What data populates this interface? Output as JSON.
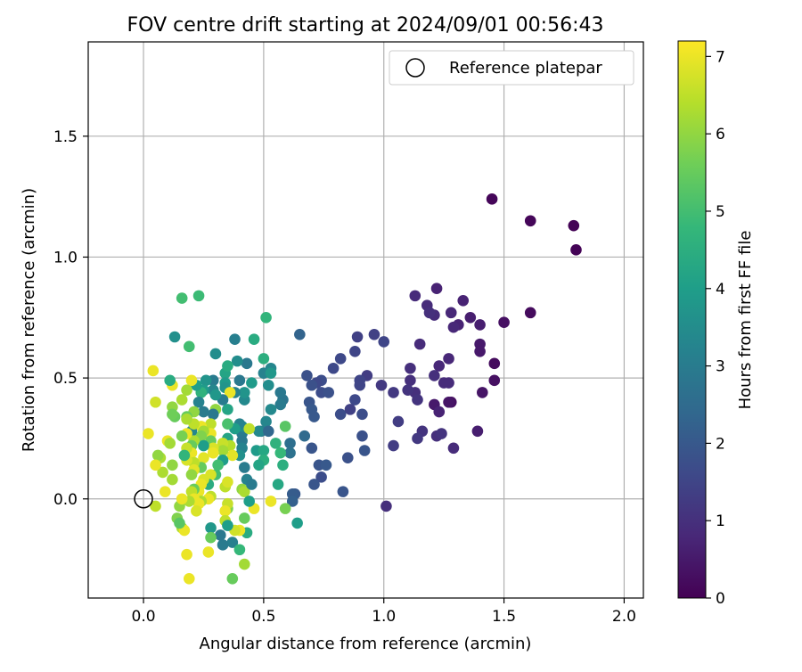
{
  "chart_data": {
    "type": "scatter",
    "title": "FOV centre drift starting at 2024/09/01 00:56:43",
    "xlabel": "Angular distance from reference (arcmin)",
    "ylabel": "Rotation from reference (arcmin)",
    "xlim": [
      -0.23,
      2.08
    ],
    "ylim": [
      -0.41,
      1.89
    ],
    "xticks": [
      0.0,
      0.5,
      1.0,
      1.5,
      2.0
    ],
    "xtick_labels": [
      "0.0",
      "0.5",
      "1.0",
      "1.5",
      "2.0"
    ],
    "yticks": [
      0.0,
      0.5,
      1.0,
      1.5
    ],
    "ytick_labels": [
      "0.0",
      "0.5",
      "1.0",
      "1.5"
    ],
    "grid": true,
    "legend": {
      "position": "top-right",
      "entries": [
        "Reference platepar"
      ]
    },
    "reference_point": {
      "x": 0.0,
      "y": 0.0,
      "label": "Reference platepar",
      "marker": "open-circle"
    },
    "colorbar": {
      "label": "Hours from first FF file",
      "range": [
        0,
        7.2
      ],
      "ticks": [
        0,
        1,
        2,
        3,
        4,
        5,
        6,
        7
      ],
      "tick_labels": [
        "0",
        "1",
        "2",
        "3",
        "4",
        "5",
        "6",
        "7"
      ],
      "colormap": "viridis"
    },
    "colormap_stops": [
      "#440154",
      "#482878",
      "#3e4989",
      "#31688e",
      "#26828e",
      "#1f9e89",
      "#35b779",
      "#6ece58",
      "#b5de2b",
      "#fde725"
    ],
    "points_format": "[x_arcmin, y_arcmin, hours]",
    "points": [
      [
        1.8,
        1.03,
        0.05
      ],
      [
        1.79,
        1.13,
        0.05
      ],
      [
        1.61,
        1.15,
        0.1
      ],
      [
        1.45,
        1.24,
        0.1
      ],
      [
        1.61,
        0.77,
        0.2
      ],
      [
        1.5,
        0.73,
        0.3
      ],
      [
        1.46,
        0.56,
        0.2
      ],
      [
        1.46,
        0.49,
        0.3
      ],
      [
        1.41,
        0.44,
        0.4
      ],
      [
        1.4,
        0.64,
        0.5
      ],
      [
        1.4,
        0.61,
        0.5
      ],
      [
        1.4,
        0.72,
        0.6
      ],
      [
        1.39,
        0.28,
        0.6
      ],
      [
        1.36,
        0.75,
        0.6
      ],
      [
        1.33,
        0.82,
        0.7
      ],
      [
        1.31,
        0.72,
        0.7
      ],
      [
        1.28,
        0.77,
        0.8
      ],
      [
        1.29,
        0.71,
        0.8
      ],
      [
        1.27,
        0.58,
        0.8
      ],
      [
        1.28,
        0.4,
        0.3
      ],
      [
        1.29,
        0.21,
        0.9
      ],
      [
        1.22,
        0.87,
        0.7
      ],
      [
        1.21,
        0.76,
        0.9
      ],
      [
        1.18,
        0.8,
        0.9
      ],
      [
        1.19,
        0.77,
        1.0
      ],
      [
        1.23,
        0.55,
        0.8
      ],
      [
        1.25,
        0.48,
        0.9
      ],
      [
        1.21,
        0.51,
        1.0
      ],
      [
        1.21,
        0.39,
        0.5
      ],
      [
        1.23,
        0.36,
        0.7
      ],
      [
        1.22,
        0.26,
        1.0
      ],
      [
        1.24,
        0.27,
        1.1
      ],
      [
        1.27,
        0.4,
        0.4
      ],
      [
        1.27,
        0.48,
        0.9
      ],
      [
        1.13,
        0.84,
        0.9
      ],
      [
        1.15,
        0.64,
        0.9
      ],
      [
        1.11,
        0.54,
        1.0
      ],
      [
        1.11,
        0.49,
        1.0
      ],
      [
        1.13,
        0.44,
        1.0
      ],
      [
        1.14,
        0.41,
        1.1
      ],
      [
        1.16,
        0.28,
        1.1
      ],
      [
        1.14,
        0.25,
        1.2
      ],
      [
        1.06,
        0.32,
        1.3
      ],
      [
        1.1,
        0.45,
        1.1
      ],
      [
        1.04,
        0.44,
        1.2
      ],
      [
        1.04,
        0.22,
        1.3
      ],
      [
        1.01,
        -0.03,
        1.0
      ],
      [
        1.0,
        0.65,
        1.5
      ],
      [
        0.99,
        0.47,
        1.2
      ],
      [
        0.96,
        0.68,
        1.4
      ],
      [
        0.93,
        0.51,
        1.3
      ],
      [
        0.89,
        0.67,
        1.4
      ],
      [
        0.88,
        0.61,
        1.5
      ],
      [
        0.9,
        0.49,
        1.5
      ],
      [
        0.9,
        0.47,
        1.5
      ],
      [
        0.88,
        0.41,
        1.6
      ],
      [
        0.91,
        0.35,
        1.7
      ],
      [
        0.91,
        0.26,
        1.8
      ],
      [
        0.92,
        0.2,
        1.9
      ],
      [
        0.86,
        0.37,
        1.4
      ],
      [
        0.85,
        0.17,
        1.8
      ],
      [
        0.82,
        0.58,
        1.6
      ],
      [
        0.79,
        0.54,
        1.6
      ],
      [
        0.82,
        0.35,
        1.7
      ],
      [
        0.83,
        0.03,
        1.9
      ],
      [
        0.74,
        0.49,
        1.7
      ],
      [
        0.74,
        0.44,
        1.7
      ],
      [
        0.77,
        0.44,
        1.8
      ],
      [
        0.72,
        0.48,
        1.6
      ],
      [
        0.7,
        0.47,
        1.8
      ],
      [
        0.69,
        0.4,
        1.9
      ],
      [
        0.68,
        0.51,
        1.8
      ],
      [
        0.7,
        0.37,
        2.0
      ],
      [
        0.71,
        0.34,
        2.0
      ],
      [
        0.7,
        0.21,
        1.9
      ],
      [
        0.73,
        0.14,
        1.9
      ],
      [
        0.76,
        0.14,
        2.0
      ],
      [
        0.74,
        0.09,
        1.7
      ],
      [
        0.71,
        0.06,
        1.9
      ],
      [
        0.67,
        0.26,
        2.5
      ],
      [
        0.65,
        0.68,
        2.3
      ],
      [
        0.63,
        0.02,
        2.0
      ],
      [
        0.62,
        0.02,
        2.1
      ],
      [
        0.62,
        -0.01,
        2.2
      ],
      [
        0.64,
        -0.1,
        4.0
      ],
      [
        0.61,
        0.23,
        2.6
      ],
      [
        0.61,
        0.19,
        2.7
      ],
      [
        0.58,
        0.41,
        2.8
      ],
      [
        0.57,
        0.39,
        3.0
      ],
      [
        0.57,
        0.44,
        2.9
      ],
      [
        0.55,
        0.23,
        4.6
      ],
      [
        0.56,
        0.06,
        4.3
      ],
      [
        0.59,
        0.3,
        5.3
      ],
      [
        0.59,
        -0.04,
        5.7
      ],
      [
        0.58,
        0.14,
        4.5
      ],
      [
        0.57,
        0.19,
        4.8
      ],
      [
        0.51,
        0.75,
        4.7
      ],
      [
        0.5,
        0.58,
        4.5
      ],
      [
        0.5,
        0.52,
        3.2
      ],
      [
        0.53,
        0.54,
        3.3
      ],
      [
        0.53,
        0.52,
        3.8
      ],
      [
        0.52,
        0.47,
        3.5
      ],
      [
        0.53,
        0.37,
        3.4
      ],
      [
        0.51,
        0.32,
        3.3
      ],
      [
        0.49,
        0.28,
        3.0
      ],
      [
        0.48,
        0.28,
        3.4
      ],
      [
        0.47,
        0.2,
        3.9
      ],
      [
        0.5,
        0.2,
        4.3
      ],
      [
        0.5,
        0.16,
        4.5
      ],
      [
        0.48,
        0.14,
        4.2
      ],
      [
        0.52,
        0.28,
        2.4
      ],
      [
        0.53,
        -0.01,
        7.0
      ],
      [
        0.46,
        -0.04,
        7.0
      ],
      [
        0.46,
        0.66,
        4.4
      ],
      [
        0.45,
        0.48,
        3.9
      ],
      [
        0.43,
        0.56,
        2.9
      ],
      [
        0.42,
        0.41,
        3.4
      ],
      [
        0.42,
        0.44,
        3.7
      ],
      [
        0.4,
        0.49,
        2.9
      ],
      [
        0.39,
        0.57,
        3.5
      ],
      [
        0.38,
        0.66,
        3.1
      ],
      [
        0.38,
        0.44,
        3.2
      ],
      [
        0.41,
        0.27,
        3.0
      ],
      [
        0.41,
        0.3,
        3.5
      ],
      [
        0.4,
        0.31,
        3.2
      ],
      [
        0.38,
        0.29,
        4.0
      ],
      [
        0.44,
        0.29,
        6.5
      ],
      [
        0.41,
        0.24,
        2.9
      ],
      [
        0.41,
        0.21,
        3.2
      ],
      [
        0.4,
        0.18,
        3.6
      ],
      [
        0.42,
        0.13,
        3.0
      ],
      [
        0.43,
        0.08,
        3.2
      ],
      [
        0.41,
        0.04,
        6.0
      ],
      [
        0.42,
        0.03,
        6.3
      ],
      [
        0.45,
        0.06,
        3.0
      ],
      [
        0.44,
        -0.01,
        4.0
      ],
      [
        0.42,
        -0.08,
        5.5
      ],
      [
        0.43,
        -0.14,
        4.4
      ],
      [
        0.42,
        -0.27,
        6.2
      ],
      [
        0.4,
        -0.13,
        7.0
      ],
      [
        0.38,
        -0.13,
        6.7
      ],
      [
        0.37,
        -0.18,
        3.1
      ],
      [
        0.4,
        -0.21,
        4.8
      ],
      [
        0.37,
        -0.33,
        5.5
      ],
      [
        0.35,
        -0.04,
        5.8
      ],
      [
        0.35,
        -0.02,
        6.6
      ],
      [
        0.34,
        0.52,
        4.2
      ],
      [
        0.34,
        0.48,
        3.9
      ],
      [
        0.35,
        0.55,
        4.4
      ],
      [
        0.34,
        0.46,
        3.7
      ],
      [
        0.36,
        0.44,
        7.0
      ],
      [
        0.33,
        0.41,
        3.0
      ],
      [
        0.35,
        0.37,
        4.2
      ],
      [
        0.35,
        0.31,
        5.1
      ],
      [
        0.35,
        0.25,
        4.2
      ],
      [
        0.36,
        0.22,
        6.4
      ],
      [
        0.37,
        0.18,
        6.9
      ],
      [
        0.33,
        0.23,
        6.6
      ],
      [
        0.33,
        0.2,
        6.2
      ],
      [
        0.33,
        0.16,
        4.0
      ],
      [
        0.31,
        0.14,
        5.0
      ],
      [
        0.34,
        0.05,
        6.5
      ],
      [
        0.35,
        0.07,
        6.8
      ],
      [
        0.34,
        -0.05,
        7.0
      ],
      [
        0.34,
        -0.09,
        6.5
      ],
      [
        0.35,
        -0.11,
        4.0
      ],
      [
        0.33,
        -0.19,
        3.0
      ],
      [
        0.32,
        -0.15,
        2.9
      ],
      [
        0.3,
        0.6,
        3.5
      ],
      [
        0.29,
        0.49,
        3.0
      ],
      [
        0.29,
        0.45,
        3.3
      ],
      [
        0.3,
        0.43,
        3.8
      ],
      [
        0.3,
        0.37,
        6.0
      ],
      [
        0.29,
        0.35,
        2.9
      ],
      [
        0.28,
        0.31,
        6.5
      ],
      [
        0.28,
        0.27,
        7.0
      ],
      [
        0.28,
        0.24,
        5.5
      ],
      [
        0.29,
        0.21,
        6.8
      ],
      [
        0.29,
        0.19,
        7.0
      ],
      [
        0.3,
        0.1,
        5.0
      ],
      [
        0.28,
        0.1,
        6.8
      ],
      [
        0.27,
        0.06,
        4.4
      ],
      [
        0.28,
        0.01,
        6.5
      ],
      [
        0.27,
        0.0,
        7.0
      ],
      [
        0.28,
        -0.12,
        3.8
      ],
      [
        0.28,
        -0.16,
        5.5
      ],
      [
        0.27,
        -0.22,
        7.0
      ],
      [
        0.26,
        0.49,
        3.7
      ],
      [
        0.25,
        0.45,
        3.9
      ],
      [
        0.24,
        0.44,
        4.6
      ],
      [
        0.23,
        0.4,
        3.2
      ],
      [
        0.25,
        0.36,
        3.0
      ],
      [
        0.24,
        0.3,
        7.0
      ],
      [
        0.25,
        0.28,
        6.2
      ],
      [
        0.24,
        0.26,
        5.8
      ],
      [
        0.25,
        0.22,
        4.0
      ],
      [
        0.25,
        0.17,
        6.9
      ],
      [
        0.24,
        0.13,
        5.5
      ],
      [
        0.25,
        0.08,
        6.8
      ],
      [
        0.24,
        0.06,
        7.0
      ],
      [
        0.23,
        0.03,
        7.0
      ],
      [
        0.24,
        -0.01,
        6.3
      ],
      [
        0.23,
        -0.02,
        7.0
      ],
      [
        0.22,
        -0.05,
        6.8
      ],
      [
        0.23,
        0.84,
        4.9
      ],
      [
        0.22,
        0.47,
        4.0
      ],
      [
        0.21,
        0.36,
        6.0
      ],
      [
        0.2,
        0.28,
        3.3
      ],
      [
        0.21,
        0.31,
        6.5
      ],
      [
        0.21,
        0.24,
        6.3
      ],
      [
        0.2,
        0.22,
        5.5
      ],
      [
        0.2,
        0.19,
        7.0
      ],
      [
        0.21,
        0.15,
        6.5
      ],
      [
        0.21,
        0.12,
        6.9
      ],
      [
        0.2,
        0.1,
        6.0
      ],
      [
        0.21,
        0.04,
        5.5
      ],
      [
        0.2,
        0.03,
        6.5
      ],
      [
        0.21,
        0.0,
        7.0
      ],
      [
        0.19,
        -0.01,
        6.3
      ],
      [
        0.2,
        0.49,
        7.0
      ],
      [
        0.19,
        0.63,
        5.0
      ],
      [
        0.18,
        0.45,
        6.2
      ],
      [
        0.18,
        0.34,
        5.5
      ],
      [
        0.18,
        0.33,
        6.3
      ],
      [
        0.18,
        0.27,
        7.0
      ],
      [
        0.18,
        0.21,
        6.6
      ],
      [
        0.18,
        0.16,
        6.8
      ],
      [
        0.16,
        0.41,
        6.3
      ],
      [
        0.16,
        0.26,
        5.7
      ],
      [
        0.17,
        0.18,
        4.7
      ],
      [
        0.16,
        0.83,
        5.0
      ],
      [
        0.15,
        -0.03,
        6.0
      ],
      [
        0.16,
        -0.12,
        6.3
      ],
      [
        0.17,
        -0.13,
        7.0
      ],
      [
        0.18,
        -0.23,
        7.0
      ],
      [
        0.19,
        -0.33,
        7.0
      ],
      [
        0.16,
        0.0,
        7.0
      ],
      [
        0.14,
        -0.08,
        5.8
      ],
      [
        0.15,
        -0.1,
        5.3
      ],
      [
        0.13,
        0.67,
        3.6
      ],
      [
        0.13,
        0.34,
        5.5
      ],
      [
        0.12,
        0.47,
        7.0
      ],
      [
        0.11,
        0.49,
        4.4
      ],
      [
        0.12,
        0.38,
        6.0
      ],
      [
        0.12,
        0.35,
        5.6
      ],
      [
        0.1,
        0.24,
        7.0
      ],
      [
        0.11,
        0.23,
        6.2
      ],
      [
        0.12,
        0.14,
        6.0
      ],
      [
        0.12,
        0.08,
        6.2
      ],
      [
        0.09,
        0.03,
        7.0
      ],
      [
        0.08,
        0.11,
        6.3
      ],
      [
        0.07,
        0.17,
        6.3
      ],
      [
        0.06,
        0.18,
        6.0
      ],
      [
        0.05,
        0.14,
        7.0
      ],
      [
        0.05,
        0.4,
        6.7
      ],
      [
        0.04,
        0.53,
        7.0
      ],
      [
        0.02,
        0.27,
        7.0
      ],
      [
        0.05,
        -0.03,
        6.5
      ]
    ]
  }
}
